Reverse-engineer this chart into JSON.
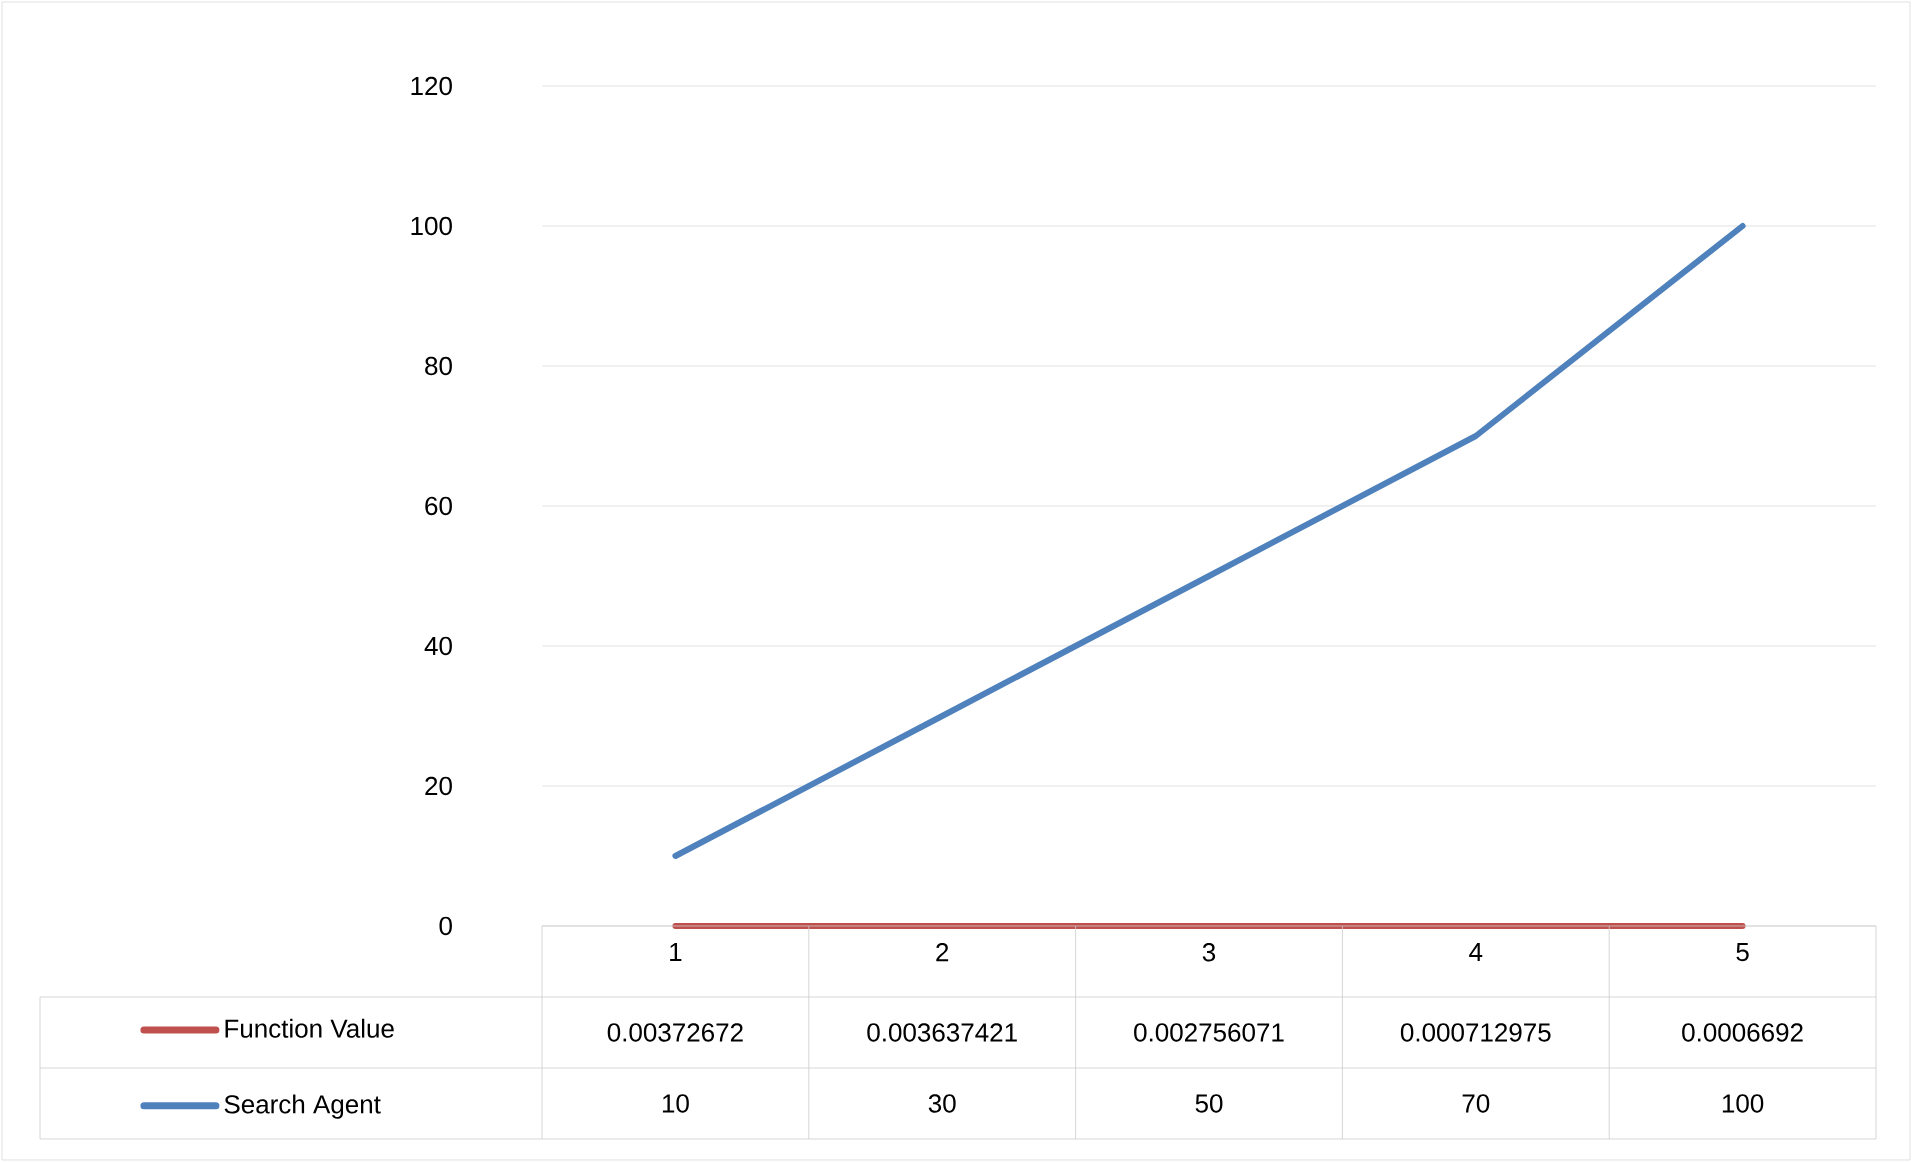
{
  "chart_data": {
    "type": "line",
    "categories": [
      "1",
      "2",
      "3",
      "4",
      "5"
    ],
    "series": [
      {
        "name": "Function Value",
        "color": "#c0504d",
        "values": [
          0.00372672,
          0.003637421,
          0.002756071,
          0.000712975,
          0.0006692
        ],
        "value_labels": [
          "0.00372672",
          "0.003637421",
          "0.002756071",
          "0.000712975",
          "0.0006692"
        ]
      },
      {
        "name": "Search Agent",
        "color": "#4f81bd",
        "values": [
          10,
          30,
          50,
          70,
          100
        ],
        "value_labels": [
          "10",
          "30",
          "50",
          "70",
          "100"
        ]
      }
    ],
    "ylim": [
      0,
      120
    ],
    "yticks": [
      0,
      20,
      40,
      60,
      80,
      100,
      120
    ],
    "grid": "y",
    "legend": "bottom"
  }
}
